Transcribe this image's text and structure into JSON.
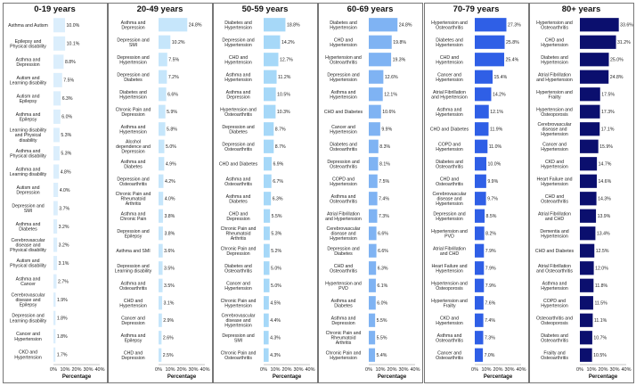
{
  "chart_data": [
    {
      "type": "bar",
      "title": "0-19 years",
      "color": "#dbeefc",
      "xlabel": "Percentage",
      "xlim": [
        0,
        40
      ],
      "xticks": [
        "0%",
        "10%",
        "20%",
        "30%",
        "40%"
      ],
      "categories": [
        [
          "Asthma and Autism"
        ],
        [
          "Epilepsy and",
          "Physical disability"
        ],
        [
          "Asthma and",
          "Depression"
        ],
        [
          "Autism and",
          "Learning disability"
        ],
        [
          "Autism and",
          "Epilepsy"
        ],
        [
          "Asthma and",
          "Epilepsy"
        ],
        [
          "Learning disability",
          "and Physical",
          "disability"
        ],
        [
          "Asthma and",
          "Physical disability"
        ],
        [
          "Asthma and",
          "Learning disability"
        ],
        [
          "Autism and",
          "Depression"
        ],
        [
          "Depression and",
          "SMI"
        ],
        [
          "Asthma and",
          "Diabetes"
        ],
        [
          "Cerebrovascular",
          "disease and",
          "Physical disability"
        ],
        [
          "Autism and",
          "Physical disability"
        ],
        [
          "Asthma and",
          "Cancer"
        ],
        [
          "Cerebrovascular",
          "disease and",
          "Epilepsy"
        ],
        [
          "Depression and",
          "Learning disability"
        ],
        [
          "Cancer and",
          "Hypertension"
        ],
        [
          "CKD and",
          "Hypertension"
        ]
      ],
      "values": [
        10.0,
        10.1,
        8.8,
        7.5,
        6.3,
        6.0,
        5.3,
        5.3,
        4.8,
        4.0,
        3.7,
        3.2,
        3.2,
        3.1,
        2.7,
        1.9,
        1.8,
        1.8,
        1.7
      ],
      "value_labels": [
        "10.0%",
        "10.1%",
        "8.8%",
        "7.5%",
        "6.3%",
        "6.0%",
        "5.3%",
        "5.3%",
        "4.8%",
        "4.0%",
        "3.7%",
        "3.2%",
        "3.2%",
        "3.1%",
        "2.7%",
        "1.9%",
        "1.8%",
        "1.8%",
        "1.7%"
      ]
    },
    {
      "type": "bar",
      "title": "20-49 years",
      "color": "#c6e6fb",
      "xlabel": "Percentage",
      "xlim": [
        0,
        40
      ],
      "xticks": [
        "0%",
        "10%",
        "20%",
        "30%",
        "40%"
      ],
      "categories": [
        [
          "Asthma and",
          "Depression"
        ],
        [
          "Depression and",
          "SMI"
        ],
        [
          "Depression and",
          "Hypertension"
        ],
        [
          "Depression and",
          "Diabetes"
        ],
        [
          "Diabetes and",
          "Hypertension"
        ],
        [
          "Chronic Pain and",
          "Depression"
        ],
        [
          "Asthma and",
          "Hypertension"
        ],
        [
          "Alcohol",
          "dependence and",
          "Depression"
        ],
        [
          "Asthma and",
          "Diabetes"
        ],
        [
          "Depression and",
          "Osteoarthritis"
        ],
        [
          "Chronic Pain and",
          "Rheumatoid",
          "Arthritis"
        ],
        [
          "Asthma and",
          "Chronic Pain"
        ],
        [
          "Depression and",
          "Epilepsy"
        ],
        [
          "Asthma and SMI"
        ],
        [
          "Depression and",
          "Learning disability"
        ],
        [
          "Asthma and",
          "Osteoarthritis"
        ],
        [
          "CHD and",
          "Hypertension"
        ],
        [
          "Cancer and",
          "Depression"
        ],
        [
          "Asthma and",
          "Epilepsy"
        ],
        [
          "CHD and",
          "Depression"
        ]
      ],
      "values": [
        24.8,
        10.2,
        7.5,
        7.2,
        6.6,
        5.9,
        5.8,
        5.0,
        4.9,
        4.2,
        4.0,
        3.8,
        3.8,
        3.6,
        3.5,
        3.5,
        3.1,
        2.9,
        2.6,
        2.5
      ],
      "value_labels": [
        "24.8%",
        "10.2%",
        "7.5%",
        "7.2%",
        "6.6%",
        "5.9%",
        "5.8%",
        "5.0%",
        "4.9%",
        "4.2%",
        "4.0%",
        "3.8%",
        "3.8%",
        "3.6%",
        "3.5%",
        "3.5%",
        "3.1%",
        "2.9%",
        "2.6%",
        "2.5%"
      ]
    },
    {
      "type": "bar",
      "title": "50-59 years",
      "color": "#a6d8f8",
      "xlabel": "Percentage",
      "xlim": [
        0,
        40
      ],
      "xticks": [
        "0%",
        "10%",
        "20%",
        "30%",
        "40%"
      ],
      "categories": [
        [
          "Diabetes and",
          "Hypertension"
        ],
        [
          "Depression and",
          "Hypertension"
        ],
        [
          "CHD and",
          "Hypertension"
        ],
        [
          "Asthma and",
          "Hypertension"
        ],
        [
          "Asthma and",
          "Depression"
        ],
        [
          "Hypertension and",
          "Osteoarthritis"
        ],
        [
          "Depression and",
          "Diabetes"
        ],
        [
          "Depression and",
          "Osteoarthritis"
        ],
        [
          "CHD and Diabetes"
        ],
        [
          "Asthma and",
          "Osteoarthritis"
        ],
        [
          "Asthma and",
          "Diabetes"
        ],
        [
          "CHD and",
          "Depression"
        ],
        [
          "Chronic Pain and",
          "Rheumatoid",
          "Arthritis"
        ],
        [
          "Chronic Pain and",
          "Depression"
        ],
        [
          "Diabetes and",
          "Osteoarthritis"
        ],
        [
          "Cancer and",
          "Hypertension"
        ],
        [
          "Chronic Pain and",
          "Hypertension"
        ],
        [
          "Cerebrovascular",
          "disease and",
          "Hypertension"
        ],
        [
          "Depression and",
          "SMI"
        ],
        [
          "Chronic Pain and",
          "Osteoarthritis"
        ]
      ],
      "values": [
        18.8,
        14.2,
        12.7,
        11.2,
        10.5,
        10.3,
        8.7,
        8.7,
        6.9,
        6.7,
        6.3,
        5.5,
        5.3,
        5.2,
        5.0,
        5.0,
        4.5,
        4.4,
        4.3,
        4.3
      ],
      "value_labels": [
        "18.8%",
        "14.2%",
        "12.7%",
        "11.2%",
        "10.5%",
        "10.3%",
        "8.7%",
        "8.7%",
        "6.9%",
        "6.7%",
        "6.3%",
        "5.5%",
        "5.3%",
        "5.2%",
        "5.0%",
        "5.0%",
        "4.5%",
        "4.4%",
        "4.3%",
        "4.3%"
      ]
    },
    {
      "type": "bar",
      "title": "60-69 years",
      "color": "#7fb3f3",
      "xlabel": "Percentage",
      "xlim": [
        0,
        40
      ],
      "xticks": [
        "0%",
        "10%",
        "20%",
        "30%",
        "40%"
      ],
      "categories": [
        [
          "Diabetes and",
          "Hypertension"
        ],
        [
          "CHD and",
          "Hypertension"
        ],
        [
          "Hypertension and",
          "Osteoarthritis"
        ],
        [
          "Depression and",
          "Hypertension"
        ],
        [
          "Asthma and",
          "Hypertension"
        ],
        [
          "CHD and Diabetes"
        ],
        [
          "Cancer and",
          "Hypertension"
        ],
        [
          "Diabetes and",
          "Osteoarthritis"
        ],
        [
          "Depression and",
          "Osteoarthritis"
        ],
        [
          "COPD and",
          "Hypertension"
        ],
        [
          "Asthma and",
          "Osteoarthritis"
        ],
        [
          "Atrial Fibrillation",
          "and Hypertension"
        ],
        [
          "Cerebrovascular",
          "disease and",
          "Hypertension"
        ],
        [
          "Depression and",
          "Diabetes"
        ],
        [
          "CHD and",
          "Osteoarthritis"
        ],
        [
          "Hypertension and",
          "PVD"
        ],
        [
          "Asthma and",
          "Diabetes"
        ],
        [
          "Asthma and",
          "Depression"
        ],
        [
          "Chronic Pain and",
          "Rheumatoid",
          "Arthritis"
        ],
        [
          "Chronic Pain and",
          "Hypertension"
        ]
      ],
      "values": [
        24.8,
        19.8,
        19.3,
        12.6,
        12.1,
        10.6,
        9.9,
        8.3,
        8.1,
        7.5,
        7.4,
        7.3,
        6.6,
        6.6,
        6.3,
        6.1,
        6.0,
        5.5,
        5.5,
        5.4
      ],
      "value_labels": [
        "24.8%",
        "19.8%",
        "19.3%",
        "12.6%",
        "12.1%",
        "10.6%",
        "9.9%",
        "8.3%",
        "8.1%",
        "7.5%",
        "7.4%",
        "7.3%",
        "6.6%",
        "6.6%",
        "6.3%",
        "6.1%",
        "6.0%",
        "5.5%",
        "5.5%",
        "5.4%"
      ]
    },
    {
      "type": "bar",
      "title": "70-79 years",
      "color": "#2f5fe6",
      "xlabel": "Percentage",
      "xlim": [
        0,
        40
      ],
      "xticks": [
        "0%",
        "10%",
        "20%",
        "30%",
        "40%"
      ],
      "categories": [
        [
          "Hypertension and",
          "Osteoarthritis"
        ],
        [
          "Diabetes and",
          "Hypertension"
        ],
        [
          "CHD and",
          "Hypertension"
        ],
        [
          "Cancer and",
          "Hypertension"
        ],
        [
          "Atrial Fibrillation",
          "and Hypertension"
        ],
        [
          "Asthma and",
          "Hypertension"
        ],
        [
          "CHD and Diabetes"
        ],
        [
          "COPD and",
          "Hypertension"
        ],
        [
          "Diabetes and",
          "Osteoarthritis"
        ],
        [
          "CHD and",
          "Osteoarthritis"
        ],
        [
          "Cerebrovascular",
          "disease and",
          "Hypertension"
        ],
        [
          "Depression and",
          "Hypertension"
        ],
        [
          "Hypertension and",
          "PVD"
        ],
        [
          "Atrial Fibrillation",
          "and CHD"
        ],
        [
          "Heart Failure and",
          "Hypertension"
        ],
        [
          "Hypertension and",
          "Osteoporosis"
        ],
        [
          "Hypertension and",
          "Frailty"
        ],
        [
          "CKD and",
          "Hypertension"
        ],
        [
          "Asthma and",
          "Osteoarthritis"
        ],
        [
          "Cancer and",
          "Osteoarthritis"
        ]
      ],
      "values": [
        27.3,
        25.8,
        25.4,
        15.4,
        14.2,
        12.1,
        11.9,
        11.0,
        10.0,
        9.9,
        9.7,
        8.5,
        8.2,
        7.9,
        7.9,
        7.9,
        7.6,
        7.4,
        7.3,
        7.0
      ],
      "value_labels": [
        "27.3%",
        "25.8%",
        "25.4%",
        "15.4%",
        "14.2%",
        "12.1%",
        "11.9%",
        "11.0%",
        "10.0%",
        "9.9%",
        "9.7%",
        "8.5%",
        "8.2%",
        "7.9%",
        "7.9%",
        "7.9%",
        "7.6%",
        "7.4%",
        "7.3%",
        "7.0%"
      ]
    },
    {
      "type": "bar",
      "title": "80+ years",
      "color": "#0b0f6e",
      "xlabel": "Percentage",
      "xlim": [
        0,
        40
      ],
      "xticks": [
        "0%",
        "10%",
        "20%",
        "30%",
        "40%"
      ],
      "categories": [
        [
          "Hypertension and",
          "Osteoarthritis"
        ],
        [
          "CHD and",
          "Hypertension"
        ],
        [
          "Diabetes and",
          "Hypertension"
        ],
        [
          "Atrial Fibrillation",
          "and Hypertension"
        ],
        [
          "Hypertension and",
          "Frailty"
        ],
        [
          "Hypertension and",
          "Osteoporosis"
        ],
        [
          "Cerebrovascular",
          "disease and",
          "Hypertension"
        ],
        [
          "Cancer and",
          "Hypertension"
        ],
        [
          "CKD and",
          "Hypertension"
        ],
        [
          "Heart Failure and",
          "Hypertension"
        ],
        [
          "CHD and",
          "Osteoarthritis"
        ],
        [
          "Atrial Fibrillation",
          "and CHD"
        ],
        [
          "Dementia and",
          "Hypertension"
        ],
        [
          "CHD and Diabetes"
        ],
        [
          "Atrial Fibrillation",
          "and Osteoarthritis"
        ],
        [
          "Asthma and",
          "Hypertension"
        ],
        [
          "COPD and",
          "Hypertension"
        ],
        [
          "Osteoarthritis and",
          "Osteoporosis"
        ],
        [
          "Diabetes and",
          "Osteoarthritis"
        ],
        [
          "Frailty and",
          "Osteoarthritis"
        ]
      ],
      "values": [
        33.6,
        31.2,
        25.0,
        24.8,
        17.5,
        17.3,
        17.1,
        15.9,
        14.7,
        14.6,
        14.3,
        13.9,
        13.4,
        12.5,
        12.0,
        11.8,
        11.5,
        11.1,
        10.7,
        10.5
      ],
      "value_labels": [
        "33.6%",
        "31.2%",
        "25.0%",
        "24.8%",
        "17.5%",
        "17.3%",
        "17.1%",
        "15.9%",
        "14.7%",
        "14.6%",
        "14.3%",
        "13.9%",
        "13.4%",
        "12.5%",
        "12.0%",
        "11.8%",
        "11.5%",
        "11.1%",
        "10.7%",
        "10.5%"
      ]
    }
  ]
}
